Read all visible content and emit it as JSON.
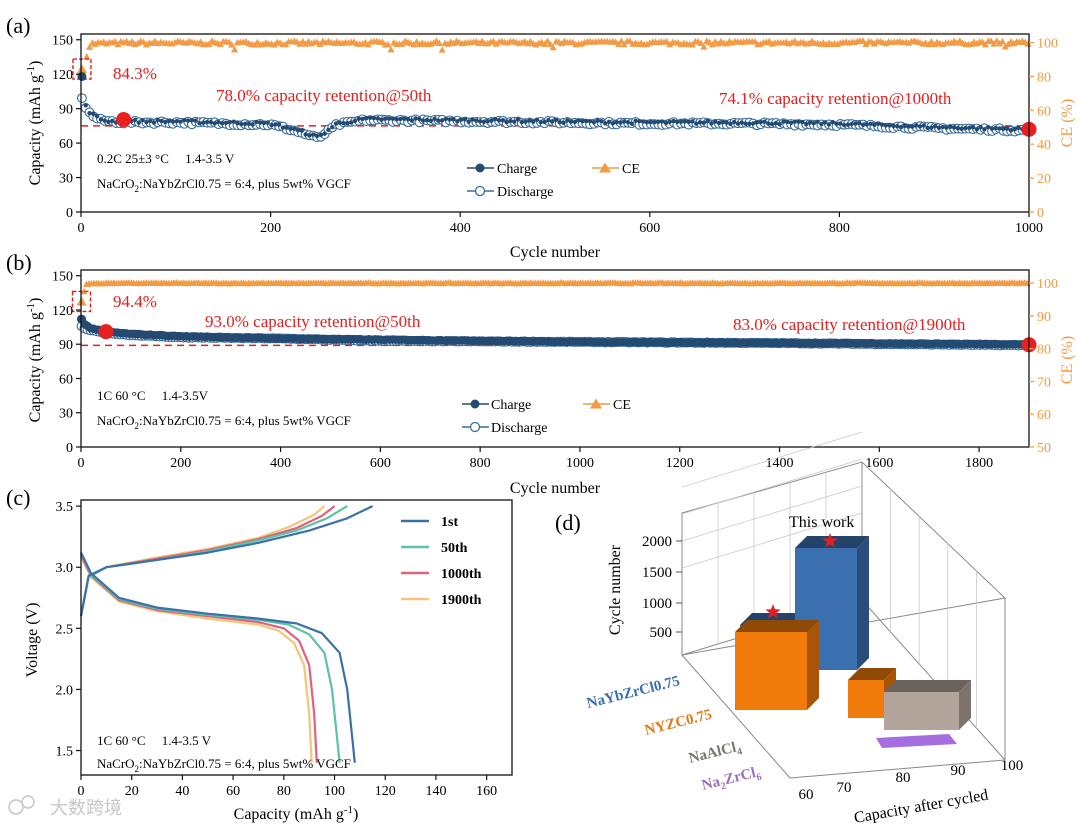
{
  "chart_data": [
    {
      "panel": "(a)",
      "type": "scatter",
      "xlabel": "Cycle number",
      "ylabel": "Capacity (mAh g",
      "ylabel_sup": "-1",
      "ylabel_right": "CE (%)",
      "xlim": [
        0,
        1000
      ],
      "ylim": [
        0,
        155
      ],
      "ylim_right": [
        0,
        105
      ],
      "xticks": [
        "0",
        "200",
        "400",
        "600",
        "800",
        "1000"
      ],
      "yticks": [
        "0",
        "30",
        "60",
        "90",
        "120",
        "150"
      ],
      "yticks_right": [
        "0",
        "20",
        "40",
        "60",
        "80",
        "100"
      ],
      "series": [
        {
          "name": "Charge",
          "x": [
            1,
            2,
            5,
            10,
            20,
            30,
            45,
            100,
            200,
            220,
            240,
            250,
            270,
            300,
            400,
            500,
            600,
            700,
            800,
            900,
            950,
            1000
          ],
          "values": [
            118,
            100,
            92,
            86,
            81,
            79,
            79,
            79,
            77,
            73,
            68,
            65,
            77,
            81,
            80,
            79,
            78,
            78,
            77,
            74,
            73,
            72
          ]
        },
        {
          "name": "Discharge",
          "x": [
            1,
            2,
            5,
            10,
            20,
            30,
            45,
            100,
            200,
            220,
            240,
            250,
            270,
            300,
            400,
            500,
            600,
            700,
            800,
            900,
            950,
            1000
          ],
          "values": [
            100,
            97,
            91,
            85,
            80,
            79,
            78,
            78,
            76,
            72,
            67,
            64,
            76,
            80,
            79,
            78,
            77,
            77,
            76,
            73,
            72,
            71
          ]
        },
        {
          "name": "CE",
          "x": [
            1,
            10,
            50,
            250,
            500,
            1000
          ],
          "values": [
            84.3,
            99.2,
            99.6,
            99.5,
            99.6,
            99.7
          ]
        }
      ],
      "reference_line": 75,
      "highlight_points": [
        {
          "x": 45,
          "y": 80.5
        },
        {
          "x": 1000,
          "y": 72
        }
      ],
      "annotations": {
        "first_ce": "84.3%",
        "retention_50": "78.0% capacity retention@50th",
        "retention_end": "74.1% capacity retention@1000th",
        "conditions": "0.2C 25±3 °C     1.4-3.5 V",
        "composition_prefix": "NaCrO",
        "composition_sub": "2",
        "composition_suffix": ":NaYbZrCl0.75 = 6:4, plus 5wt% VGCF"
      }
    },
    {
      "panel": "(b)",
      "type": "scatter",
      "xlabel": "Cycle number",
      "ylabel": "Capacity (mAh g",
      "ylabel_sup": "-1",
      "ylabel_right": "CE (%)",
      "xlim": [
        0,
        1900
      ],
      "ylim": [
        0,
        155
      ],
      "ylim_right": [
        50,
        104
      ],
      "xticks": [
        "0",
        "200",
        "400",
        "600",
        "800",
        "1000",
        "1200",
        "1400",
        "1600",
        "1800"
      ],
      "yticks": [
        "0",
        "30",
        "60",
        "90",
        "120",
        "150"
      ],
      "yticks_right": [
        "50",
        "60",
        "70",
        "80",
        "90",
        "100"
      ],
      "series": [
        {
          "name": "Charge",
          "x": [
            1,
            5,
            20,
            50,
            100,
            200,
            400,
            600,
            1000,
            1400,
            1900
          ],
          "values": [
            112,
            108,
            104,
            101,
            99,
            97,
            95,
            94,
            92,
            91,
            90
          ]
        },
        {
          "name": "Discharge",
          "x": [
            1,
            5,
            20,
            50,
            100,
            200,
            400,
            600,
            1000,
            1400,
            1900
          ],
          "values": [
            106,
            104,
            102,
            100,
            98,
            96,
            95,
            93,
            92,
            91,
            89
          ]
        },
        {
          "name": "CE",
          "x": [
            1,
            10,
            50,
            1900
          ],
          "values": [
            94.4,
            99.7,
            99.9,
            99.9
          ]
        }
      ],
      "reference_line": 89,
      "highlight_points": [
        {
          "x": 50,
          "y": 101
        },
        {
          "x": 1900,
          "y": 89.5
        }
      ],
      "annotations": {
        "first_ce": "94.4%",
        "retention_50": "93.0% capacity retention@50th",
        "retention_end": "83.0% capacity retention@1900th",
        "conditions": "1C 60 °C     1.4-3.5V",
        "composition_prefix": "NaCrO",
        "composition_sub": "2",
        "composition_suffix": ":NaYbZrCl0.75 = 6:4, plus 5wt% VGCF"
      }
    },
    {
      "panel": "(c)",
      "type": "line",
      "xlabel": "Capacity (mAh g",
      "xlabel_sup": "-1",
      "xlabel_close": ")",
      "ylabel": "Voltage (V)",
      "xlim": [
        0,
        170
      ],
      "ylim": [
        1.3,
        3.55
      ],
      "xticks": [
        "0",
        "20",
        "40",
        "60",
        "80",
        "100",
        "120",
        "140",
        "160"
      ],
      "yticks": [
        "1.5",
        "2.0",
        "2.5",
        "3.0",
        "3.5"
      ],
      "series": [
        {
          "name": "1st",
          "color": "#3a72a8",
          "charge": {
            "x": [
              0,
              3,
              10,
              30,
              50,
              70,
              90,
              105,
              115
            ],
            "y": [
              2.6,
              2.93,
              3.0,
              3.06,
              3.12,
              3.2,
              3.3,
              3.4,
              3.5
            ]
          },
          "discharge": {
            "x": [
              0,
              4,
              15,
              30,
              50,
              70,
              85,
              95,
              102,
              105,
              107,
              108
            ],
            "y": [
              3.12,
              2.95,
              2.75,
              2.67,
              2.62,
              2.58,
              2.54,
              2.46,
              2.3,
              2.0,
              1.6,
              1.4
            ]
          }
        },
        {
          "name": "50th",
          "color": "#5cc2a8",
          "charge": {
            "x": [
              0,
              3,
              10,
              30,
              50,
              70,
              85,
              97,
              105
            ],
            "y": [
              2.6,
              2.92,
              3.0,
              3.06,
              3.13,
              3.22,
              3.3,
              3.4,
              3.5
            ]
          },
          "discharge": {
            "x": [
              0,
              4,
              15,
              30,
              50,
              70,
              82,
              90,
              96,
              99,
              101,
              102
            ],
            "y": [
              3.12,
              2.94,
              2.74,
              2.66,
              2.61,
              2.57,
              2.53,
              2.45,
              2.3,
              2.0,
              1.6,
              1.4
            ]
          }
        },
        {
          "name": "1000th",
          "color": "#e0607e",
          "charge": {
            "x": [
              0,
              3,
              10,
              30,
              50,
              70,
              85,
              95,
              100
            ],
            "y": [
              2.6,
              2.92,
              3.0,
              3.07,
              3.14,
              3.23,
              3.32,
              3.42,
              3.5
            ]
          },
          "discharge": {
            "x": [
              0,
              4,
              15,
              30,
              50,
              70,
              80,
              86,
              90,
              92,
              93
            ],
            "y": [
              3.1,
              2.93,
              2.73,
              2.65,
              2.6,
              2.55,
              2.5,
              2.4,
              2.2,
              1.8,
              1.4
            ]
          }
        },
        {
          "name": "1900th",
          "color": "#f3c67a",
          "charge": {
            "x": [
              0,
              3,
              10,
              30,
              50,
              70,
              82,
              92,
              96
            ],
            "y": [
              2.6,
              2.92,
              3.0,
              3.08,
              3.15,
              3.24,
              3.33,
              3.43,
              3.5
            ]
          },
          "discharge": {
            "x": [
              0,
              4,
              15,
              30,
              50,
              70,
              78,
              84,
              88,
              90,
              91
            ],
            "y": [
              3.08,
              2.92,
              2.72,
              2.64,
              2.58,
              2.53,
              2.48,
              2.38,
              2.2,
              1.8,
              1.4
            ]
          }
        }
      ],
      "annotations": {
        "conditions": "1C 60 °C     1.4-3.5 V",
        "composition_prefix": "NaCrO",
        "composition_sub": "2",
        "composition_suffix": ":NaYbZrCl0.75 = 6:4, plus 5wt% VGCF"
      }
    },
    {
      "panel": "(d)",
      "type": "bar",
      "title_annotation": "This work",
      "xlabel": "Capacity after cycled",
      "ylabel": "Cycle number",
      "xticks": [
        "60",
        "70",
        "80",
        "90",
        "100"
      ],
      "zticks": [
        "500",
        "1000",
        "1500",
        "2000"
      ],
      "categories": [
        {
          "text": "NaYbZrCl0.75",
          "sub": "",
          "after": "",
          "color": "#3a6fb0"
        },
        {
          "text": "NYZC0.75",
          "sub": "",
          "after": "",
          "color": "#e17a16"
        },
        {
          "text": "NaAlCl",
          "sub": "4",
          "after": "",
          "color": "#7a746e"
        },
        {
          "text": "Na",
          "sub": "2",
          "after": "ZrCl",
          "sub2": "6",
          "color": "#9a6fc0"
        }
      ],
      "bars": [
        {
          "material": "NaYbZrCl0.75",
          "capacity": 74.1,
          "cycles": 1000,
          "color": "#3a6fb0",
          "starred": true
        },
        {
          "material": "NaYbZrCl0.75",
          "capacity": 83.0,
          "cycles": 1900,
          "color": "#3a6fb0",
          "starred": true
        },
        {
          "material": "NYZC0.75",
          "capacity": 68,
          "cycles": 600,
          "color": "#f07a0a",
          "starred": false
        },
        {
          "material": "NYZC0.75",
          "capacity": 85,
          "cycles": 100,
          "color": "#f07a0a",
          "starred": false
        },
        {
          "material": "NaAlCl4",
          "capacity": 89,
          "cycles": 100,
          "color": "#b2a49a",
          "starred": false
        },
        {
          "material": "Na2ZrCl6",
          "capacity": 87,
          "cycles": 20,
          "color": "#a46ee0",
          "starred": false
        }
      ]
    }
  ],
  "legend": {
    "charge": "Charge",
    "discharge": "Discharge",
    "ce": "CE"
  },
  "watermark": "大数跨境",
  "colors": {
    "charge": "#244a72",
    "ce": "#f29a44",
    "red": "#e02020"
  }
}
